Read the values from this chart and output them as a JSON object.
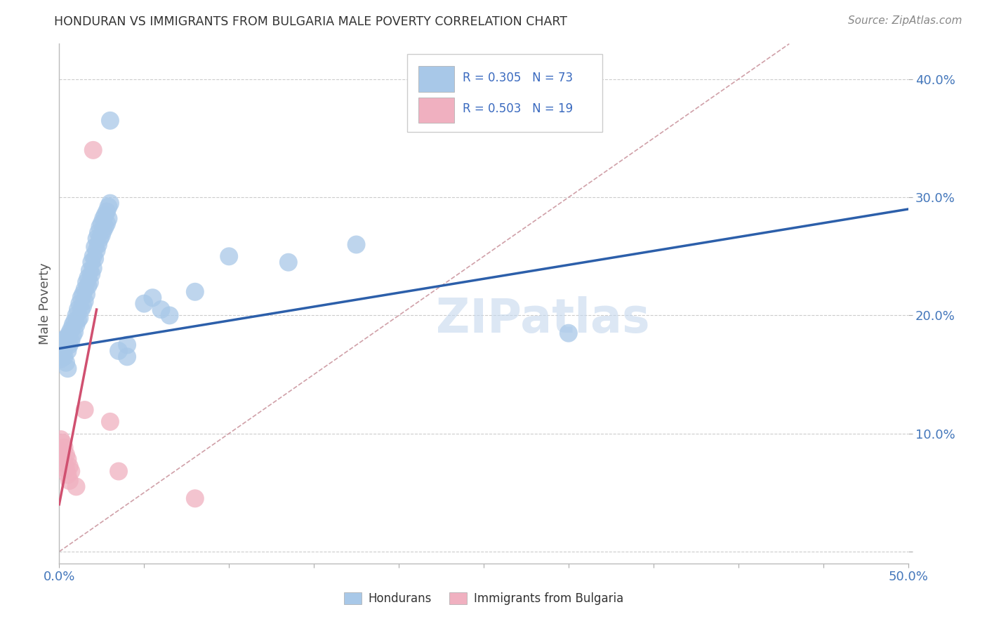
{
  "title": "HONDURAN VS IMMIGRANTS FROM BULGARIA MALE POVERTY CORRELATION CHART",
  "source": "Source: ZipAtlas.com",
  "ylabel_text": "Male Poverty",
  "xlim": [
    0.0,
    0.5
  ],
  "ylim": [
    -0.01,
    0.43
  ],
  "xticks": [
    0.0,
    0.05,
    0.1,
    0.15,
    0.2,
    0.25,
    0.3,
    0.35,
    0.4,
    0.45,
    0.5
  ],
  "yticks": [
    0.0,
    0.1,
    0.2,
    0.3,
    0.4
  ],
  "honduran_color": "#a8c8e8",
  "bulgaria_color": "#f0b0c0",
  "honduran_line_color": "#2c5faa",
  "bulgaria_line_color": "#d05070",
  "dashed_line_color": "#d0a0a8",
  "watermark": "ZIPatlas",
  "honduran_points": [
    [
      0.001,
      0.17
    ],
    [
      0.001,
      0.163
    ],
    [
      0.002,
      0.175
    ],
    [
      0.002,
      0.168
    ],
    [
      0.003,
      0.172
    ],
    [
      0.003,
      0.18
    ],
    [
      0.003,
      0.165
    ],
    [
      0.004,
      0.178
    ],
    [
      0.004,
      0.16
    ],
    [
      0.005,
      0.182
    ],
    [
      0.005,
      0.17
    ],
    [
      0.005,
      0.155
    ],
    [
      0.006,
      0.185
    ],
    [
      0.006,
      0.175
    ],
    [
      0.007,
      0.188
    ],
    [
      0.007,
      0.178
    ],
    [
      0.008,
      0.192
    ],
    [
      0.008,
      0.183
    ],
    [
      0.009,
      0.195
    ],
    [
      0.009,
      0.186
    ],
    [
      0.01,
      0.2
    ],
    [
      0.01,
      0.192
    ],
    [
      0.011,
      0.205
    ],
    [
      0.011,
      0.196
    ],
    [
      0.012,
      0.21
    ],
    [
      0.012,
      0.198
    ],
    [
      0.013,
      0.215
    ],
    [
      0.013,
      0.205
    ],
    [
      0.014,
      0.218
    ],
    [
      0.014,
      0.208
    ],
    [
      0.015,
      0.222
    ],
    [
      0.015,
      0.212
    ],
    [
      0.016,
      0.228
    ],
    [
      0.016,
      0.218
    ],
    [
      0.017,
      0.232
    ],
    [
      0.017,
      0.225
    ],
    [
      0.018,
      0.238
    ],
    [
      0.018,
      0.228
    ],
    [
      0.019,
      0.245
    ],
    [
      0.019,
      0.235
    ],
    [
      0.02,
      0.25
    ],
    [
      0.02,
      0.24
    ],
    [
      0.021,
      0.258
    ],
    [
      0.021,
      0.248
    ],
    [
      0.022,
      0.265
    ],
    [
      0.022,
      0.255
    ],
    [
      0.023,
      0.27
    ],
    [
      0.023,
      0.26
    ],
    [
      0.024,
      0.275
    ],
    [
      0.024,
      0.265
    ],
    [
      0.025,
      0.278
    ],
    [
      0.025,
      0.268
    ],
    [
      0.026,
      0.282
    ],
    [
      0.026,
      0.272
    ],
    [
      0.027,
      0.285
    ],
    [
      0.027,
      0.275
    ],
    [
      0.028,
      0.288
    ],
    [
      0.028,
      0.278
    ],
    [
      0.029,
      0.292
    ],
    [
      0.029,
      0.282
    ],
    [
      0.03,
      0.365
    ],
    [
      0.03,
      0.295
    ],
    [
      0.035,
      0.17
    ],
    [
      0.04,
      0.175
    ],
    [
      0.04,
      0.165
    ],
    [
      0.05,
      0.21
    ],
    [
      0.055,
      0.215
    ],
    [
      0.06,
      0.205
    ],
    [
      0.065,
      0.2
    ],
    [
      0.08,
      0.22
    ],
    [
      0.1,
      0.25
    ],
    [
      0.135,
      0.245
    ],
    [
      0.175,
      0.26
    ],
    [
      0.3,
      0.185
    ]
  ],
  "bulgaria_points": [
    [
      0.001,
      0.095
    ],
    [
      0.001,
      0.085
    ],
    [
      0.002,
      0.092
    ],
    [
      0.002,
      0.08
    ],
    [
      0.003,
      0.088
    ],
    [
      0.003,
      0.075
    ],
    [
      0.004,
      0.082
    ],
    [
      0.004,
      0.07
    ],
    [
      0.005,
      0.078
    ],
    [
      0.005,
      0.065
    ],
    [
      0.006,
      0.072
    ],
    [
      0.006,
      0.06
    ],
    [
      0.007,
      0.068
    ],
    [
      0.01,
      0.055
    ],
    [
      0.015,
      0.12
    ],
    [
      0.02,
      0.34
    ],
    [
      0.03,
      0.11
    ],
    [
      0.035,
      0.068
    ],
    [
      0.08,
      0.045
    ]
  ],
  "honduran_line": {
    "x0": 0.0,
    "y0": 0.172,
    "x1": 0.5,
    "y1": 0.29
  },
  "bulgaria_line": {
    "x0": 0.0,
    "y0": 0.04,
    "x1": 0.022,
    "y1": 0.205
  },
  "dashed_line": {
    "x0": 0.0,
    "y0": 0.0,
    "x1": 0.43,
    "y1": 0.43
  }
}
